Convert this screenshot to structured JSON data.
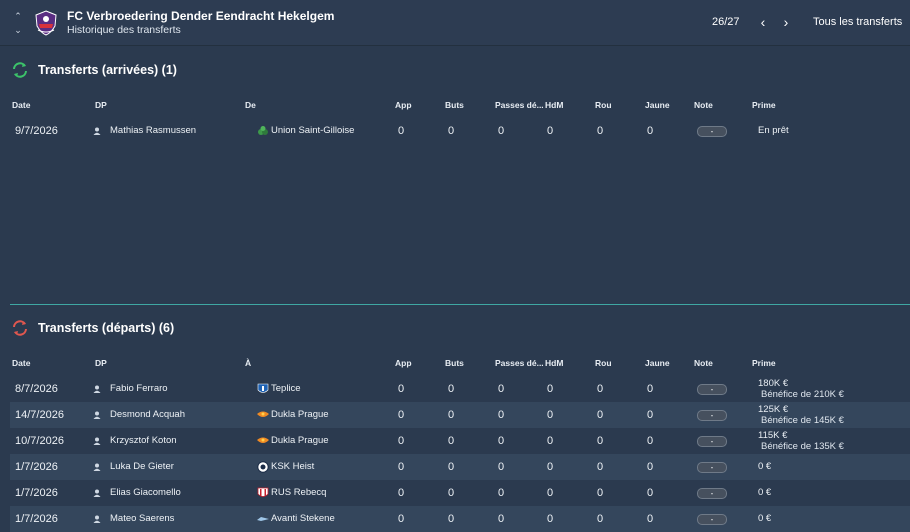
{
  "header": {
    "club_name": "FC Verbroedering Dender Eendracht Hekelgem",
    "subtitle": "Historique des transferts",
    "season": "26/27",
    "prev": "‹",
    "next": "›",
    "all_transfers": "Tous les transferts"
  },
  "arrivals": {
    "title": "Transferts (arrivées) (1)",
    "columns": [
      "Date",
      "DP",
      "De",
      "App",
      "Buts",
      "Passes dé...",
      "HdM",
      "Rou",
      "Jaune",
      "Note",
      "Prime"
    ],
    "rows": [
      {
        "date": "9/7/2026",
        "player": "Mathias Rasmussen",
        "club": "Union Saint-Gilloise",
        "app": "0",
        "buts": "0",
        "passes": "0",
        "hdm": "0",
        "rou": "0",
        "jaune": "0",
        "note": "-",
        "prime": "En prêt"
      }
    ]
  },
  "departures": {
    "title": "Transferts (départs) (6)",
    "columns": [
      "Date",
      "DP",
      "À",
      "App",
      "Buts",
      "Passes dé...",
      "HdM",
      "Rou",
      "Jaune",
      "Note",
      "Prime"
    ],
    "rows": [
      {
        "date": "8/7/2026",
        "player": "Fabio Ferraro",
        "club": "Teplice",
        "app": "0",
        "buts": "0",
        "passes": "0",
        "hdm": "0",
        "rou": "0",
        "jaune": "0",
        "note": "-",
        "prime": "180K €",
        "prime2": "Bénéfice de 210K €"
      },
      {
        "date": "14/7/2026",
        "player": "Desmond Acquah",
        "club": "Dukla Prague",
        "app": "0",
        "buts": "0",
        "passes": "0",
        "hdm": "0",
        "rou": "0",
        "jaune": "0",
        "note": "-",
        "prime": "125K €",
        "prime2": "Bénéfice de 145K €"
      },
      {
        "date": "10/7/2026",
        "player": "Krzysztof Koton",
        "club": "Dukla Prague",
        "app": "0",
        "buts": "0",
        "passes": "0",
        "hdm": "0",
        "rou": "0",
        "jaune": "0",
        "note": "-",
        "prime": "115K €",
        "prime2": "Bénéfice de 135K €"
      },
      {
        "date": "1/7/2026",
        "player": "Luka De Gieter",
        "club": "KSK Heist",
        "app": "0",
        "buts": "0",
        "passes": "0",
        "hdm": "0",
        "rou": "0",
        "jaune": "0",
        "note": "-",
        "prime": "0 €"
      },
      {
        "date": "1/7/2026",
        "player": "Elias Giacomello",
        "club": "RUS Rebecq",
        "app": "0",
        "buts": "0",
        "passes": "0",
        "hdm": "0",
        "rou": "0",
        "jaune": "0",
        "note": "-",
        "prime": "0 €"
      },
      {
        "date": "1/7/2026",
        "player": "Mateo Saerens",
        "club": "Avanti Stekene",
        "app": "0",
        "buts": "0",
        "passes": "0",
        "hdm": "0",
        "rou": "0",
        "jaune": "0",
        "note": "-",
        "prime": "0 €"
      }
    ]
  },
  "colors": {
    "background": "#2b3a4f",
    "row_alt": "#34465c",
    "accent_teal": "#3fa7a3",
    "arrival_icon": "#3cc46a",
    "departure_icon": "#e0574f"
  }
}
